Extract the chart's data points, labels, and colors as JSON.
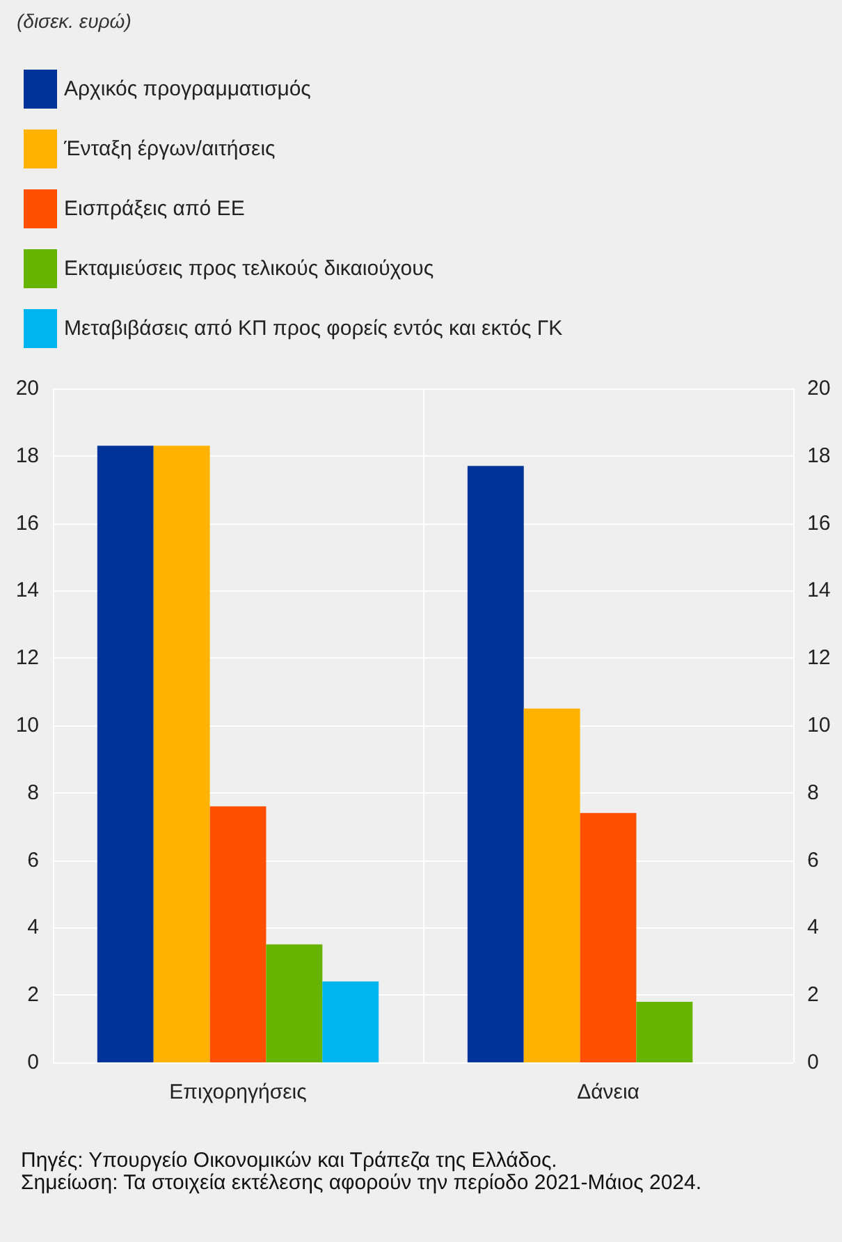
{
  "chart_data": {
    "type": "bar",
    "subtitle": "(δισεκ. ευρώ)",
    "categories": [
      "Επιχορηγήσεις",
      "Δάνεια"
    ],
    "series": [
      {
        "name": "Αρχικός προγραμματισμός",
        "color": "#003399",
        "values": [
          18.3,
          17.7
        ]
      },
      {
        "name": "Ένταξη έργων/αιτήσεις",
        "color": "#ffb300",
        "values": [
          18.3,
          10.5
        ]
      },
      {
        "name": "Εισπράξεις από ΕΕ",
        "color": "#ff4f00",
        "values": [
          7.6,
          7.4
        ]
      },
      {
        "name": "Εκταμιεύσεις προς τελικούς δικαιούχους",
        "color": "#66b300",
        "values": [
          3.5,
          1.8
        ]
      },
      {
        "name": "Μεταβιβάσεις από ΚΠ προς φορείς εντός και εκτός ΓΚ",
        "color": "#00b4f0",
        "values": [
          2.4,
          null
        ]
      }
    ],
    "ylim": [
      0,
      20
    ],
    "yticks": [
      0,
      2,
      4,
      6,
      8,
      10,
      12,
      14,
      16,
      18,
      20
    ],
    "y2lim": [
      0,
      20
    ],
    "y2ticks": [
      0,
      2,
      4,
      6,
      8,
      10,
      12,
      14,
      16,
      18,
      20
    ],
    "grid": true,
    "legend": "top left",
    "annotations": [
      "Πηγές: Υπουργείο Οικονομικών και Τράπεζα της Ελλάδος.",
      "Σημείωση: Τα στοιχεία εκτέλεσης αφορούν την περίοδο 2021-Μάιος 2024."
    ]
  }
}
